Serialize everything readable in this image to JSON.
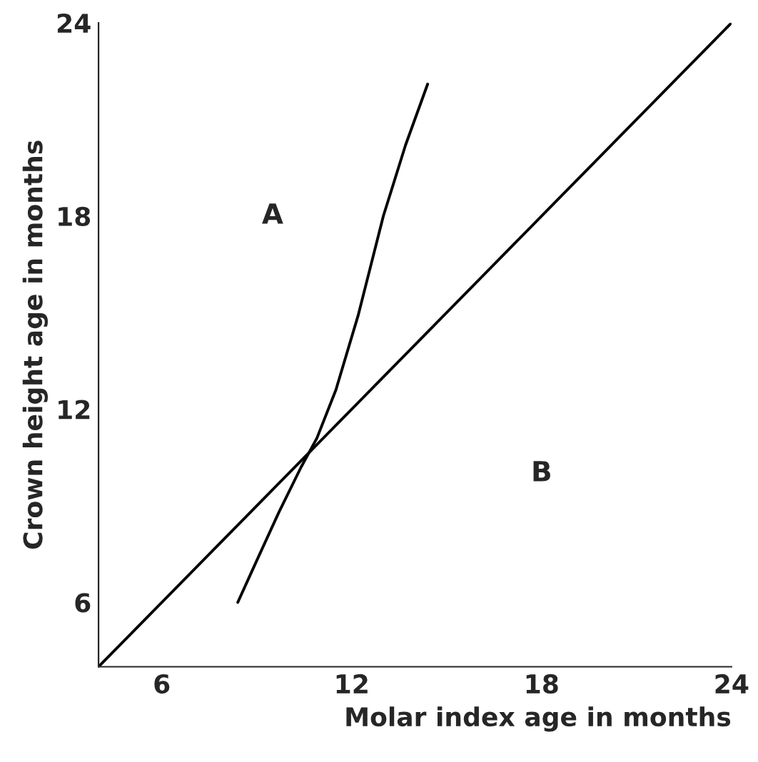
{
  "chart_data": {
    "type": "line",
    "xlabel": "Molar index age in months",
    "ylabel": "Crown height age in months",
    "xlim": [
      4,
      24
    ],
    "ylim": [
      4,
      24
    ],
    "xticks": [
      6,
      12,
      18,
      24
    ],
    "yticks": [
      6,
      12,
      18,
      24
    ],
    "grid": false,
    "legend": false,
    "series": [
      {
        "color": "#000000",
        "x": [
          4,
          24
        ],
        "values": [
          4,
          24
        ]
      },
      {
        "color": "#000000",
        "x": [
          8.4,
          9.0,
          9.7,
          10.4,
          10.9,
          11.5,
          12.2,
          13.0,
          13.7,
          14.4
        ],
        "values": [
          6,
          7.3,
          8.8,
          10.2,
          11.1,
          12.6,
          14.9,
          18.0,
          20.2,
          22.1
        ]
      }
    ],
    "annotations": [
      "A",
      "B"
    ]
  }
}
